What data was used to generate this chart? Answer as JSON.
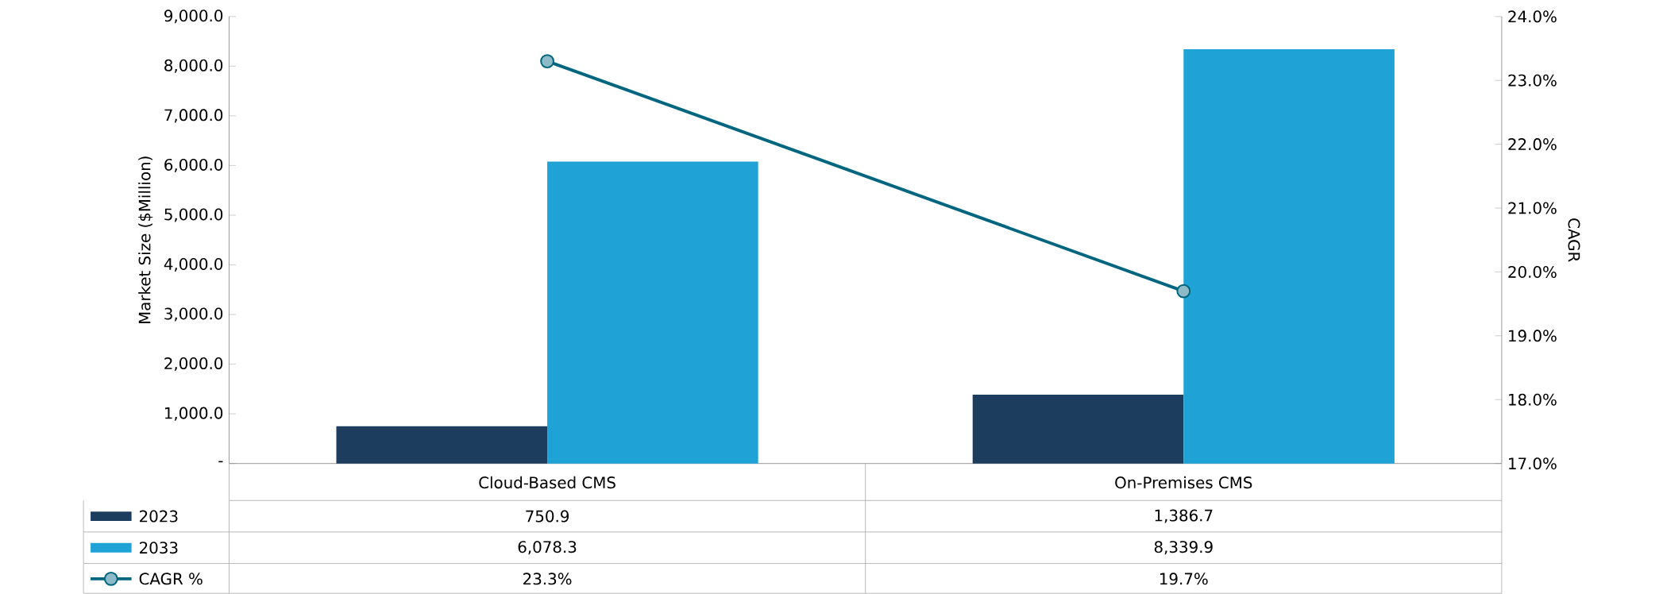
{
  "chart_data": {
    "type": "bar",
    "ylabel": "Market Size ($Million)",
    "y2label": "CAGR",
    "categories": [
      "Cloud-Based CMS",
      "On-Premises CMS"
    ],
    "series": [
      {
        "name": "2023",
        "color": "#1c3d5e",
        "values": [
          750.9,
          1386.7
        ],
        "value_labels": [
          "750.9",
          "1,386.7"
        ]
      },
      {
        "name": "2033",
        "color": "#1fa3d6",
        "values": [
          6078.3,
          8339.9
        ],
        "value_labels": [
          "6,078.3",
          "8,339.9"
        ]
      },
      {
        "name": "CAGR %",
        "type": "line",
        "axis": "y2",
        "color": "#006680",
        "marker": "circle",
        "values": [
          23.3,
          19.7
        ],
        "value_labels": [
          "23.3%",
          "19.7%"
        ]
      }
    ],
    "ylim": [
      0,
      9000
    ],
    "yticks": [
      {
        "value": 0,
        "label": "-"
      },
      {
        "value": 1000,
        "label": "1,000.0"
      },
      {
        "value": 2000,
        "label": "2,000.0"
      },
      {
        "value": 3000,
        "label": "3,000.0"
      },
      {
        "value": 4000,
        "label": "4,000.0"
      },
      {
        "value": 5000,
        "label": "5,000.0"
      },
      {
        "value": 6000,
        "label": "6,000.0"
      },
      {
        "value": 7000,
        "label": "7,000.0"
      },
      {
        "value": 8000,
        "label": "8,000.0"
      },
      {
        "value": 9000,
        "label": "9,000.0"
      }
    ],
    "y2lim": [
      17,
      24
    ],
    "y2ticks": [
      {
        "value": 17,
        "label": "17.0%"
      },
      {
        "value": 18,
        "label": "18.0%"
      },
      {
        "value": 19,
        "label": "19.0%"
      },
      {
        "value": 20,
        "label": "20.0%"
      },
      {
        "value": 21,
        "label": "21.0%"
      },
      {
        "value": 22,
        "label": "22.0%"
      },
      {
        "value": 23,
        "label": "23.0%"
      },
      {
        "value": 24,
        "label": "24.0%"
      }
    ],
    "legend": "bottom left"
  }
}
